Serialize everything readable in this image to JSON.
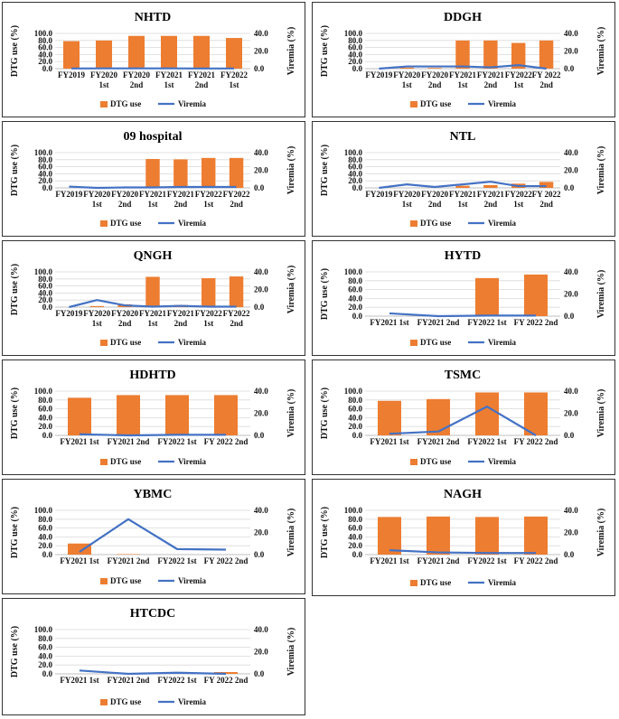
{
  "colors": {
    "bar": "#ED7D31",
    "line": "#4472C4",
    "grid": "#D9D9D9"
  },
  "legend": {
    "bar_label": "DTG use",
    "line_label": "Viremia"
  },
  "axes": {
    "left_label": "DTG use (%)",
    "right_label": "Viremia (%)"
  },
  "chart_data": [
    {
      "type": "bar",
      "title": "NHTD",
      "categories": [
        [
          "FY2019"
        ],
        [
          "FY2020",
          "1st"
        ],
        [
          "FY2020",
          "2nd"
        ],
        [
          "FY2021",
          "1st"
        ],
        [
          "FY2021",
          "2nd"
        ],
        [
          "FY2022",
          "1st"
        ]
      ],
      "series": [
        {
          "name": "DTG use",
          "type": "bar",
          "axis": "left",
          "values": [
            78,
            80,
            93,
            93,
            93,
            87
          ]
        },
        {
          "name": "Viremia",
          "type": "line",
          "axis": "right",
          "values": [
            0.2,
            0.3,
            0.3,
            0.3,
            0.2,
            0.2
          ]
        }
      ],
      "ylim": [
        0,
        100
      ],
      "y2lim": [
        0,
        40
      ],
      "yticks": [
        "0.0",
        "20.0",
        "40.0",
        "60.0",
        "80.0",
        "100.0"
      ],
      "y2ticks": [
        "0.0",
        "20.0",
        "40.0"
      ],
      "grid": true,
      "legend_position": "bottom"
    },
    {
      "type": "bar",
      "title": "DDGH",
      "categories": [
        [
          "FY2019"
        ],
        [
          "FY2020",
          "1st"
        ],
        [
          "FY2020",
          "2nd"
        ],
        [
          "FY2021",
          "1st"
        ],
        [
          "FY2021",
          "2nd"
        ],
        [
          "FY2022",
          "1st"
        ],
        [
          "FY 2022",
          "2nd"
        ]
      ],
      "series": [
        {
          "name": "DTG use",
          "type": "bar",
          "axis": "left",
          "values": [
            0,
            3,
            2,
            80,
            80,
            73,
            80
          ]
        },
        {
          "name": "Viremia",
          "type": "line",
          "axis": "right",
          "values": [
            0,
            2.5,
            2.5,
            2.5,
            1.5,
            4,
            0
          ]
        }
      ],
      "ylim": [
        0,
        100
      ],
      "y2lim": [
        0,
        40
      ],
      "yticks": [
        "0.0",
        "20.0",
        "40.0",
        "60.0",
        "80.0",
        "100.0"
      ],
      "y2ticks": [
        "0.0",
        "20.0",
        "40.0"
      ],
      "grid": true,
      "legend_position": "bottom"
    },
    {
      "type": "bar",
      "title": "09 hospital",
      "categories": [
        [
          "FY2019"
        ],
        [
          "FY2020",
          "1st"
        ],
        [
          "FY2020",
          "2nd"
        ],
        [
          "FY2021",
          "1st"
        ],
        [
          "FY2021",
          "2nd"
        ],
        [
          "FY2022",
          "1st"
        ],
        [
          "FY2022",
          "2nd"
        ]
      ],
      "series": [
        {
          "name": "DTG use",
          "type": "bar",
          "axis": "left",
          "values": [
            0,
            0,
            0,
            82,
            81,
            85,
            85
          ]
        },
        {
          "name": "Viremia",
          "type": "line",
          "axis": "right",
          "values": [
            1.5,
            0,
            0.5,
            0.5,
            1,
            1,
            1
          ]
        }
      ],
      "ylim": [
        0,
        100
      ],
      "y2lim": [
        0,
        40
      ],
      "yticks": [
        "0.0",
        "20.0",
        "40.0",
        "60.0",
        "80.0",
        "100.0"
      ],
      "y2ticks": [
        "0.0",
        "20.0",
        "40.0"
      ],
      "grid": true,
      "legend_position": "bottom"
    },
    {
      "type": "bar",
      "title": "NTL",
      "categories": [
        [
          "FY2019"
        ],
        [
          "FY2020",
          "1st"
        ],
        [
          "FY2020",
          "2nd"
        ],
        [
          "FY2021",
          "1st"
        ],
        [
          "FY2021",
          "2nd"
        ],
        [
          "FY2022",
          "1st"
        ],
        [
          "FY 2022",
          "2nd"
        ]
      ],
      "series": [
        {
          "name": "DTG use",
          "type": "bar",
          "axis": "left",
          "values": [
            0,
            0,
            0,
            6,
            8,
            12,
            17
          ]
        },
        {
          "name": "Viremia",
          "type": "line",
          "axis": "right",
          "values": [
            0,
            4,
            1,
            4,
            7,
            2,
            2
          ]
        }
      ],
      "ylim": [
        0,
        100
      ],
      "y2lim": [
        0,
        40
      ],
      "yticks": [
        "0.0",
        "20.0",
        "40.0",
        "60.0",
        "80.0",
        "100.0"
      ],
      "y2ticks": [
        "0.0",
        "20.0",
        "40.0"
      ],
      "grid": true,
      "legend_position": "bottom"
    },
    {
      "type": "bar",
      "title": "QNGH",
      "categories": [
        [
          "FY2019"
        ],
        [
          "FY2020",
          "1st"
        ],
        [
          "FY2020",
          "2nd"
        ],
        [
          "FY2021",
          "1st"
        ],
        [
          "FY2021",
          "2nd"
        ],
        [
          "FY2022",
          "1st"
        ],
        [
          "FY2022",
          "2nd"
        ]
      ],
      "series": [
        {
          "name": "DTG use",
          "type": "bar",
          "axis": "left",
          "values": [
            0,
            3,
            8,
            86,
            6,
            82,
            87
          ]
        },
        {
          "name": "Viremia",
          "type": "line",
          "axis": "right",
          "values": [
            0,
            8,
            2,
            0.5,
            1.5,
            0.5,
            0.5
          ]
        }
      ],
      "ylim": [
        0,
        100
      ],
      "y2lim": [
        0,
        40
      ],
      "yticks": [
        "0.0",
        "20.0",
        "40.0",
        "60.0",
        "80.0",
        "100.0"
      ],
      "y2ticks": [
        "0.0",
        "20.0",
        "40.0"
      ],
      "grid": true,
      "legend_position": "bottom"
    },
    {
      "type": "bar",
      "title": "HYTD",
      "categories": [
        [
          "FY2021 1st"
        ],
        [
          "FY2021 2nd"
        ],
        [
          "FY2022 1st"
        ],
        [
          "FY 2022 2nd"
        ]
      ],
      "series": [
        {
          "name": "DTG use",
          "type": "bar",
          "axis": "left",
          "values": [
            0,
            0,
            86,
            94
          ]
        },
        {
          "name": "Viremia",
          "type": "line",
          "axis": "right",
          "values": [
            2.5,
            0,
            0.5,
            0.5
          ]
        }
      ],
      "ylim": [
        0,
        100
      ],
      "y2lim": [
        0,
        40
      ],
      "yticks": [
        "0.0",
        "20.0",
        "40.0",
        "60.0",
        "80.0",
        "100.0"
      ],
      "y2ticks": [
        "0.0",
        "20.0",
        "40.0"
      ],
      "grid": true,
      "legend_position": "bottom"
    },
    {
      "type": "bar",
      "title": "HDHTD",
      "categories": [
        [
          "FY2021 1st"
        ],
        [
          "FY2021 2nd"
        ],
        [
          "FY2022 1st"
        ],
        [
          "FY 2022 2nd"
        ]
      ],
      "series": [
        {
          "name": "DTG use",
          "type": "bar",
          "axis": "left",
          "values": [
            85,
            91,
            91,
            91
          ]
        },
        {
          "name": "Viremia",
          "type": "line",
          "axis": "right",
          "values": [
            1,
            0,
            0.5,
            0.5
          ]
        }
      ],
      "ylim": [
        0,
        100
      ],
      "y2lim": [
        0,
        40
      ],
      "yticks": [
        "0.0",
        "20.0",
        "40.0",
        "60.0",
        "80.0",
        "100.0"
      ],
      "y2ticks": [
        "0.0",
        "20.0",
        "40.0"
      ],
      "grid": true,
      "legend_position": "bottom"
    },
    {
      "type": "bar",
      "title": "TSMC",
      "categories": [
        [
          "FY2021 1st"
        ],
        [
          "FY2021 2nd"
        ],
        [
          "FY2022 1st"
        ],
        [
          "FY 2022 2nd"
        ]
      ],
      "series": [
        {
          "name": "DTG use",
          "type": "bar",
          "axis": "left",
          "values": [
            78,
            82,
            97,
            97
          ]
        },
        {
          "name": "Viremia",
          "type": "line",
          "axis": "right",
          "values": [
            1.5,
            3.5,
            26,
            0
          ]
        }
      ],
      "ylim": [
        0,
        100
      ],
      "y2lim": [
        0,
        40
      ],
      "yticks": [
        "0.0",
        "20.0",
        "40.0",
        "60.0",
        "80.0",
        "100.0"
      ],
      "y2ticks": [
        "0.0",
        "20.0",
        "40.0"
      ],
      "grid": true,
      "legend_position": "bottom"
    },
    {
      "type": "bar",
      "title": "YBMC",
      "categories": [
        [
          "FY2021 1st"
        ],
        [
          "FY2021 2nd"
        ],
        [
          "FY2022 1st"
        ],
        [
          "FY 2022 2nd"
        ]
      ],
      "series": [
        {
          "name": "DTG use",
          "type": "bar",
          "axis": "left",
          "values": [
            25,
            1,
            0,
            0
          ]
        },
        {
          "name": "Viremia",
          "type": "line",
          "axis": "right",
          "values": [
            2.5,
            32,
            5,
            4.5
          ]
        }
      ],
      "ylim": [
        0,
        100
      ],
      "y2lim": [
        0,
        40
      ],
      "yticks": [
        "0.0",
        "20.0",
        "40.0",
        "60.0",
        "80.0",
        "100.0"
      ],
      "y2ticks": [
        "0.0",
        "20.0",
        "40.0"
      ],
      "grid": true,
      "legend_position": "bottom"
    },
    {
      "type": "bar",
      "title": "NAGH",
      "categories": [
        [
          "FY2021 1st"
        ],
        [
          "FY2021 2nd"
        ],
        [
          "FY2022 1st"
        ],
        [
          "FY 2022 2nd"
        ]
      ],
      "series": [
        {
          "name": "DTG use",
          "type": "bar",
          "axis": "left",
          "values": [
            85,
            86,
            85,
            86
          ]
        },
        {
          "name": "Viremia",
          "type": "line",
          "axis": "right",
          "values": [
            4,
            2,
            1.5,
            1.5
          ]
        }
      ],
      "ylim": [
        0,
        100
      ],
      "y2lim": [
        0,
        40
      ],
      "yticks": [
        "0.0",
        "20.0",
        "40.0",
        "60.0",
        "80.0",
        "100.0"
      ],
      "y2ticks": [
        "0.0",
        "20.0",
        "40.0"
      ],
      "grid": true,
      "legend_position": "bottom"
    },
    {
      "type": "bar",
      "title": "HTCDC",
      "categories": [
        [
          "FY2021 1st"
        ],
        [
          "FY2021 2nd"
        ],
        [
          "FY2022 1st"
        ],
        [
          "FY 2022 2nd"
        ]
      ],
      "series": [
        {
          "name": "DTG use",
          "type": "bar",
          "axis": "left",
          "values": [
            0,
            0,
            0,
            4
          ]
        },
        {
          "name": "Viremia",
          "type": "line",
          "axis": "right",
          "values": [
            3,
            0,
            1,
            0
          ]
        }
      ],
      "ylim": [
        0,
        100
      ],
      "y2lim": [
        0,
        40
      ],
      "yticks": [
        "0.0",
        "20.0",
        "40.0",
        "60.0",
        "80.0",
        "100.0"
      ],
      "y2ticks": [
        "0.0",
        "20.0",
        "40.0"
      ],
      "grid": true,
      "legend_position": "bottom"
    }
  ]
}
